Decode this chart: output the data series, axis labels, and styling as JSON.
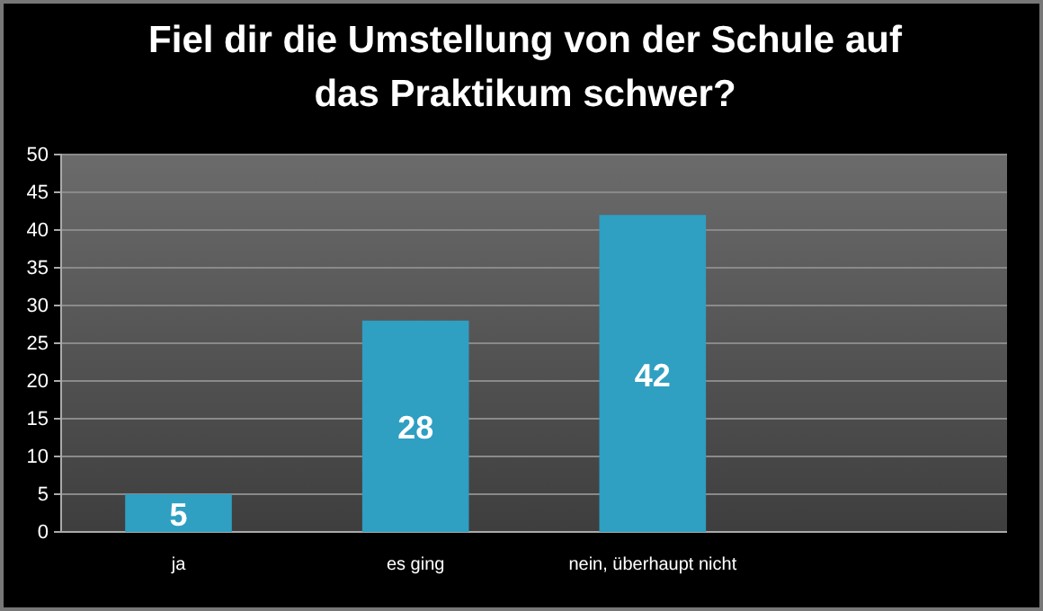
{
  "chart_data": {
    "type": "bar",
    "title": "Fiel dir die Umstellung von der Schule auf das Praktikum schwer?",
    "categories": [
      "ja",
      "es ging",
      "nein, überhaupt nicht",
      null
    ],
    "values": [
      5,
      28,
      42,
      null
    ],
    "color": "#2f9fc2",
    "ylim": [
      0,
      50
    ],
    "yticks": [
      0,
      5,
      10,
      15,
      20,
      25,
      30,
      35,
      40,
      45,
      50
    ],
    "grid": "y",
    "data_labels": true
  }
}
